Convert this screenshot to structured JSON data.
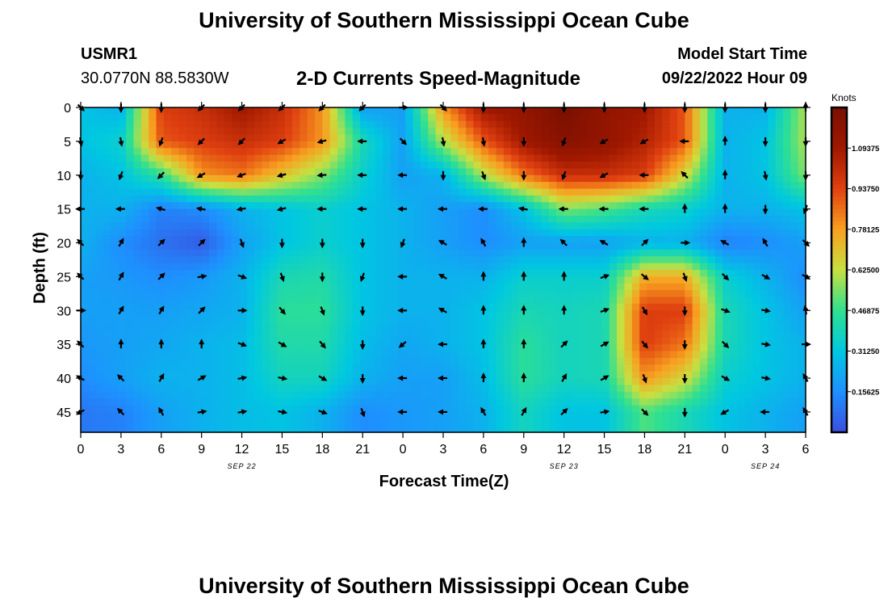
{
  "header": {
    "title": "University of Southern Mississippi Ocean Cube",
    "station_id": "USMR1",
    "coordinates": "30.0770N  88.5830W",
    "plot_title": "2-D Currents Speed-Magnitude",
    "model_start_label": "Model Start Time",
    "model_start_value": "09/22/2022 Hour 09"
  },
  "footer": {
    "title": "University of Southern Mississippi Ocean Cube"
  },
  "chart_data": {
    "type": "heatmap",
    "xlabel": "Forecast Time(Z)",
    "ylabel": "Depth (ft)",
    "colorbar_label": "Knots",
    "x_tick_labels": [
      "0",
      "3",
      "6",
      "9",
      "12",
      "15",
      "18",
      "21",
      "0",
      "3",
      "6",
      "9",
      "12",
      "15",
      "18",
      "21",
      "0",
      "3",
      "6"
    ],
    "date_labels": [
      {
        "label": "SEP 22",
        "tick_index": 4
      },
      {
        "label": "SEP 23",
        "tick_index": 12
      },
      {
        "label": "SEP 24",
        "tick_index": 17
      }
    ],
    "y_ticks": [
      0,
      5,
      10,
      15,
      20,
      25,
      30,
      35,
      40,
      45
    ],
    "ylim": [
      0,
      48
    ],
    "colorbar_ticks": [
      "0.15625",
      "0.31250",
      "0.46875",
      "0.62500",
      "0.78125",
      "0.93750",
      "1.09375"
    ],
    "colorbar_range": [
      0,
      1.25
    ],
    "colormap": [
      "#3b4fe0",
      "#1e90ff",
      "#00c8e0",
      "#30e090",
      "#c8e040",
      "#f8a020",
      "#e04010",
      "#a01800",
      "#7a1000"
    ],
    "depths_ft": [
      0,
      5,
      10,
      15,
      20,
      25,
      30,
      35,
      40,
      45
    ],
    "speed_knots": [
      [
        0.3,
        0.25,
        0.95,
        1.0,
        1.1,
        1.0,
        0.8,
        0.2,
        0.2,
        0.8,
        1.1,
        1.15,
        1.25,
        1.15,
        1.1,
        0.9,
        0.25,
        0.25,
        0.6
      ],
      [
        0.3,
        0.35,
        0.9,
        0.95,
        1.0,
        0.95,
        0.8,
        0.4,
        0.2,
        0.6,
        0.9,
        1.1,
        1.2,
        1.15,
        1.05,
        0.9,
        0.25,
        0.3,
        0.6
      ],
      [
        0.25,
        0.3,
        0.45,
        0.8,
        0.85,
        0.7,
        0.55,
        0.35,
        0.2,
        0.25,
        0.6,
        0.85,
        1.0,
        1.0,
        0.95,
        0.65,
        0.25,
        0.3,
        0.55
      ],
      [
        0.25,
        0.25,
        0.12,
        0.15,
        0.25,
        0.3,
        0.35,
        0.3,
        0.25,
        0.2,
        0.15,
        0.3,
        0.55,
        0.5,
        0.4,
        0.35,
        0.25,
        0.25,
        0.3
      ],
      [
        0.25,
        0.15,
        0.08,
        0.03,
        0.2,
        0.3,
        0.35,
        0.3,
        0.25,
        0.2,
        0.15,
        0.2,
        0.2,
        0.2,
        0.25,
        0.25,
        0.12,
        0.15,
        0.2
      ],
      [
        0.2,
        0.18,
        0.15,
        0.18,
        0.25,
        0.4,
        0.42,
        0.3,
        0.25,
        0.25,
        0.25,
        0.35,
        0.35,
        0.35,
        0.75,
        0.75,
        0.35,
        0.25,
        0.15
      ],
      [
        0.2,
        0.2,
        0.2,
        0.22,
        0.25,
        0.45,
        0.45,
        0.3,
        0.25,
        0.25,
        0.3,
        0.4,
        0.38,
        0.4,
        0.95,
        0.95,
        0.4,
        0.3,
        0.2
      ],
      [
        0.18,
        0.2,
        0.22,
        0.25,
        0.28,
        0.42,
        0.42,
        0.28,
        0.22,
        0.25,
        0.3,
        0.45,
        0.38,
        0.4,
        0.95,
        0.85,
        0.4,
        0.3,
        0.25
      ],
      [
        0.15,
        0.2,
        0.25,
        0.25,
        0.28,
        0.38,
        0.38,
        0.25,
        0.2,
        0.2,
        0.28,
        0.45,
        0.38,
        0.4,
        0.8,
        0.65,
        0.35,
        0.3,
        0.25
      ],
      [
        0.1,
        0.12,
        0.2,
        0.25,
        0.28,
        0.3,
        0.25,
        0.15,
        0.18,
        0.2,
        0.25,
        0.38,
        0.3,
        0.3,
        0.5,
        0.4,
        0.3,
        0.25,
        0.2
      ]
    ],
    "direction_deg": [
      [
        135,
        180,
        180,
        225,
        225,
        225,
        225,
        225,
        90,
        135,
        180,
        180,
        180,
        180,
        180,
        180,
        180,
        180,
        0
      ],
      [
        170,
        170,
        200,
        225,
        225,
        240,
        255,
        270,
        135,
        170,
        170,
        180,
        200,
        240,
        240,
        270,
        0,
        180,
        180
      ],
      [
        180,
        200,
        225,
        240,
        250,
        255,
        265,
        270,
        270,
        180,
        160,
        180,
        200,
        240,
        270,
        315,
        0,
        170,
        180
      ],
      [
        270,
        270,
        285,
        280,
        260,
        255,
        270,
        270,
        270,
        270,
        270,
        280,
        270,
        270,
        270,
        0,
        0,
        180,
        200
      ],
      [
        315,
        30,
        45,
        45,
        160,
        180,
        180,
        180,
        200,
        300,
        330,
        0,
        315,
        300,
        45,
        90,
        300,
        330,
        135
      ],
      [
        315,
        30,
        45,
        80,
        110,
        160,
        180,
        200,
        270,
        300,
        0,
        0,
        0,
        70,
        130,
        160,
        135,
        120,
        120
      ],
      [
        90,
        30,
        30,
        45,
        90,
        140,
        160,
        180,
        270,
        300,
        0,
        0,
        0,
        70,
        150,
        180,
        110,
        100,
        350
      ],
      [
        315,
        0,
        0,
        0,
        110,
        120,
        140,
        180,
        230,
        270,
        0,
        0,
        45,
        60,
        140,
        180,
        135,
        100,
        90
      ],
      [
        300,
        315,
        30,
        60,
        80,
        100,
        120,
        180,
        270,
        270,
        0,
        0,
        30,
        60,
        160,
        180,
        120,
        100,
        330
      ],
      [
        240,
        315,
        330,
        80,
        80,
        100,
        110,
        160,
        270,
        270,
        330,
        30,
        45,
        80,
        135,
        180,
        240,
        270,
        330
      ]
    ]
  }
}
